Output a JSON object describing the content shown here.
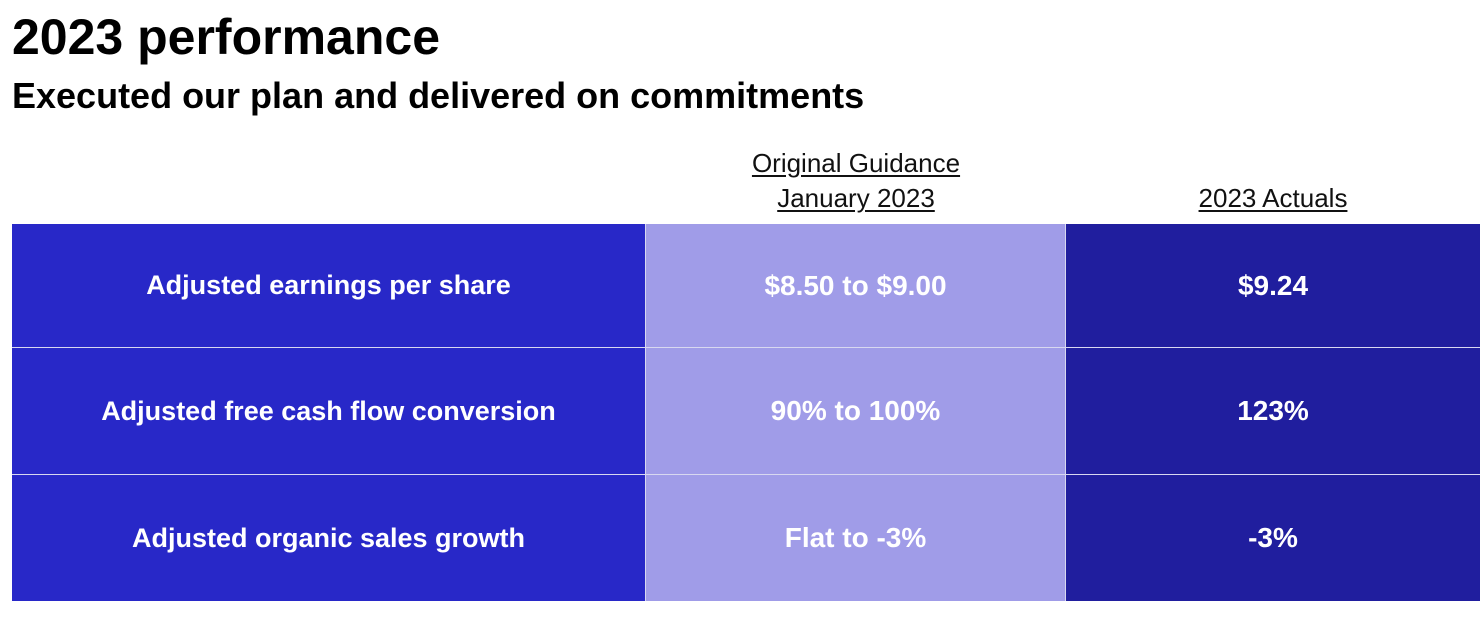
{
  "slide": {
    "title": "2023 performance",
    "subtitle": "Executed our plan and delivered on commitments"
  },
  "columns": {
    "guidance": [
      "Original Guidance",
      "January 2023"
    ],
    "actuals": "2023 Actuals"
  },
  "colors": {
    "metric_bg": "#2828c8",
    "guidance_bg": "#a09ce8",
    "actuals_bg": "#201e9e"
  },
  "rows": [
    {
      "metric": "Adjusted earnings per share",
      "guidance": "$8.50 to $9.00",
      "actual": "$9.24"
    },
    {
      "metric": "Adjusted free cash flow conversion",
      "guidance": "90% to 100%",
      "actual": "123%"
    },
    {
      "metric": "Adjusted organic sales growth",
      "guidance": "Flat to -3%",
      "actual": "-3%"
    }
  ]
}
